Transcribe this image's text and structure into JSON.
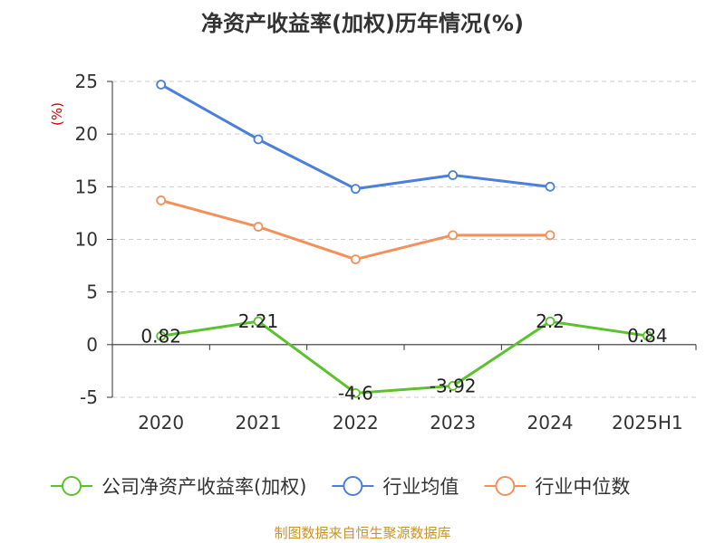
{
  "chart_data": {
    "type": "line",
    "title": "净资产收益率(加权)历年情况(%)",
    "ylabel": "(%)",
    "categories": [
      "2020",
      "2021",
      "2022",
      "2023",
      "2024",
      "2025H1"
    ],
    "yticks": [
      -5,
      0,
      5,
      10,
      15,
      20,
      25
    ],
    "ylim": [
      -5,
      25
    ],
    "grid": true,
    "legend_position": "bottom",
    "series": [
      {
        "name": "公司净资产收益率(加权)",
        "color": "#5bc22e",
        "values": [
          0.82,
          2.21,
          -4.6,
          -3.92,
          2.2,
          0.84
        ],
        "labels": [
          "0.82",
          "2.21",
          "-4.6",
          "-3.92",
          "2.2",
          "0.84"
        ]
      },
      {
        "name": "行业均值",
        "color": "#4a7fdc",
        "values": [
          24.7,
          19.5,
          14.8,
          16.1,
          15.0,
          null
        ]
      },
      {
        "name": "行业中位数",
        "color": "#f5905b",
        "values": [
          13.7,
          11.2,
          8.1,
          10.4,
          10.4,
          null
        ]
      }
    ]
  },
  "colors": {
    "unit_label": "#cc0000",
    "source": "#c8932b",
    "grid": "#cccccc",
    "axis": "#333333"
  },
  "source": "制图数据来自恒生聚源数据库"
}
